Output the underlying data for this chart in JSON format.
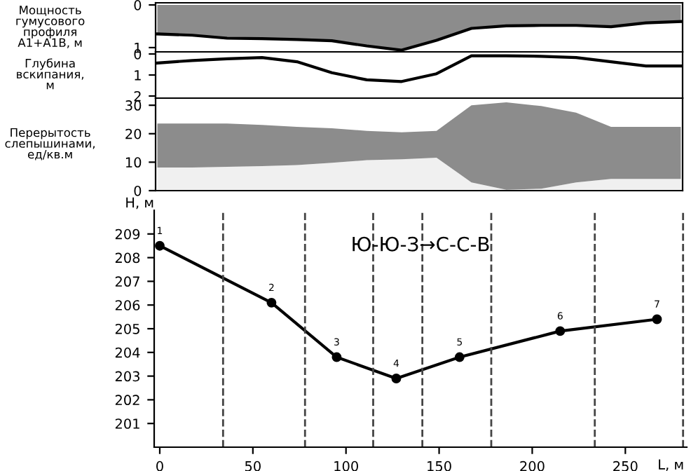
{
  "chart_data": [
    {
      "type": "area",
      "ylabel": "Мощность\nгумусового\nпрофиля\nА1+А1В, м",
      "categories": [
        null,
        null,
        null,
        null,
        null,
        null,
        null,
        null,
        null,
        null,
        null,
        null,
        null,
        null,
        null,
        null
      ],
      "tick_labels": "y",
      "ylim": [
        1.1,
        -0.05
      ],
      "yticks": [
        0,
        1
      ],
      "series": [
        {
          "color": "#8c8c8c",
          "values": [
            0.68,
            0.71,
            0.78,
            0.79,
            0.81,
            0.84,
            0.96,
            1.06,
            0.83,
            0.55,
            0.49,
            0.48,
            0.48,
            0.51,
            0.42,
            0.39
          ]
        }
      ]
    },
    {
      "type": "line",
      "ylabel": "Глубина\nвскипания,\nм",
      "categories": [
        null,
        null,
        null,
        null,
        null,
        null,
        null,
        null,
        null,
        null,
        null,
        null,
        null,
        null,
        null,
        null
      ],
      "tick_labels": "y",
      "ylim": [
        2.1,
        -0.1
      ],
      "yticks": [
        0,
        1,
        2
      ],
      "series": [
        {
          "color": "#000000",
          "values": [
            0.43,
            0.31,
            0.23,
            0.17,
            0.37,
            0.89,
            1.23,
            1.31,
            0.94,
            0.09,
            0.09,
            0.11,
            0.17,
            0.37,
            0.57,
            0.57
          ]
        }
      ]
    },
    {
      "type": "area",
      "ylabel": "Перерытость\nслепышинами,\nед/кв.м",
      "categories": [
        null,
        null,
        null,
        null,
        null,
        null,
        null,
        null,
        null,
        null,
        null,
        null,
        null,
        null,
        null,
        null
      ],
      "tick_labels": "y",
      "ylim": [
        0,
        32.5
      ],
      "yticks": [
        0,
        10,
        20,
        30
      ],
      "stacked": true,
      "series": [
        {
          "color": "#f0f0f0",
          "values": [
            8.1,
            8.1,
            8.4,
            8.6,
            9.0,
            9.8,
            10.7,
            11.0,
            11.6,
            2.9,
            0.3,
            0.7,
            2.9,
            4.1,
            4.1,
            4.1
          ]
        },
        {
          "color": "#8c8c8c",
          "values": [
            15.5,
            15.5,
            15.2,
            14.5,
            13.4,
            12.1,
            10.3,
            9.5,
            9.4,
            27.1,
            30.7,
            29.0,
            24.5,
            18.3,
            18.3,
            18.3
          ]
        }
      ]
    },
    {
      "type": "line",
      "xlabel": "L, м",
      "ylabel": "H, м",
      "x": [
        0,
        60,
        95,
        127,
        161,
        215,
        267
      ],
      "marker": "circle",
      "series": [
        {
          "color": "#000000",
          "values": [
            208.5,
            206.1,
            203.8,
            202.9,
            203.8,
            204.9,
            205.4
          ]
        }
      ],
      "xlim": [
        -3,
        283
      ],
      "xticks": [
        0,
        50,
        100,
        150,
        200,
        250
      ],
      "ylim": [
        200,
        210
      ],
      "yticks": [
        201,
        202,
        203,
        204,
        205,
        206,
        207,
        208,
        209
      ],
      "ref_lines": [
        {
          "axis": "x",
          "value": 34,
          "line_style": "dashed"
        },
        {
          "axis": "x",
          "value": 78,
          "line_style": "dashed"
        },
        {
          "axis": "x",
          "value": 114.6,
          "line_style": "dashed"
        },
        {
          "axis": "x",
          "value": 141,
          "line_style": "dashed"
        },
        {
          "axis": "x",
          "value": 178,
          "line_style": "dashed"
        },
        {
          "axis": "x",
          "value": 233.6,
          "line_style": "dashed"
        },
        {
          "axis": "x",
          "value": 281,
          "line_style": "dashed"
        }
      ],
      "annotations": [
        "Ю-Ю-З→С-С-В",
        {
          "text": "1",
          "x": 0,
          "y": 208.5
        },
        {
          "text": "2",
          "x": 60,
          "y": 206.1
        },
        {
          "text": "3",
          "x": 95,
          "y": 203.8
        },
        {
          "text": "4",
          "x": 127,
          "y": 202.9
        },
        {
          "text": "5",
          "x": 161,
          "y": 203.8
        },
        {
          "text": "6",
          "x": 215,
          "y": 204.9
        },
        {
          "text": "7",
          "x": 267,
          "y": 205.4
        }
      ]
    }
  ]
}
